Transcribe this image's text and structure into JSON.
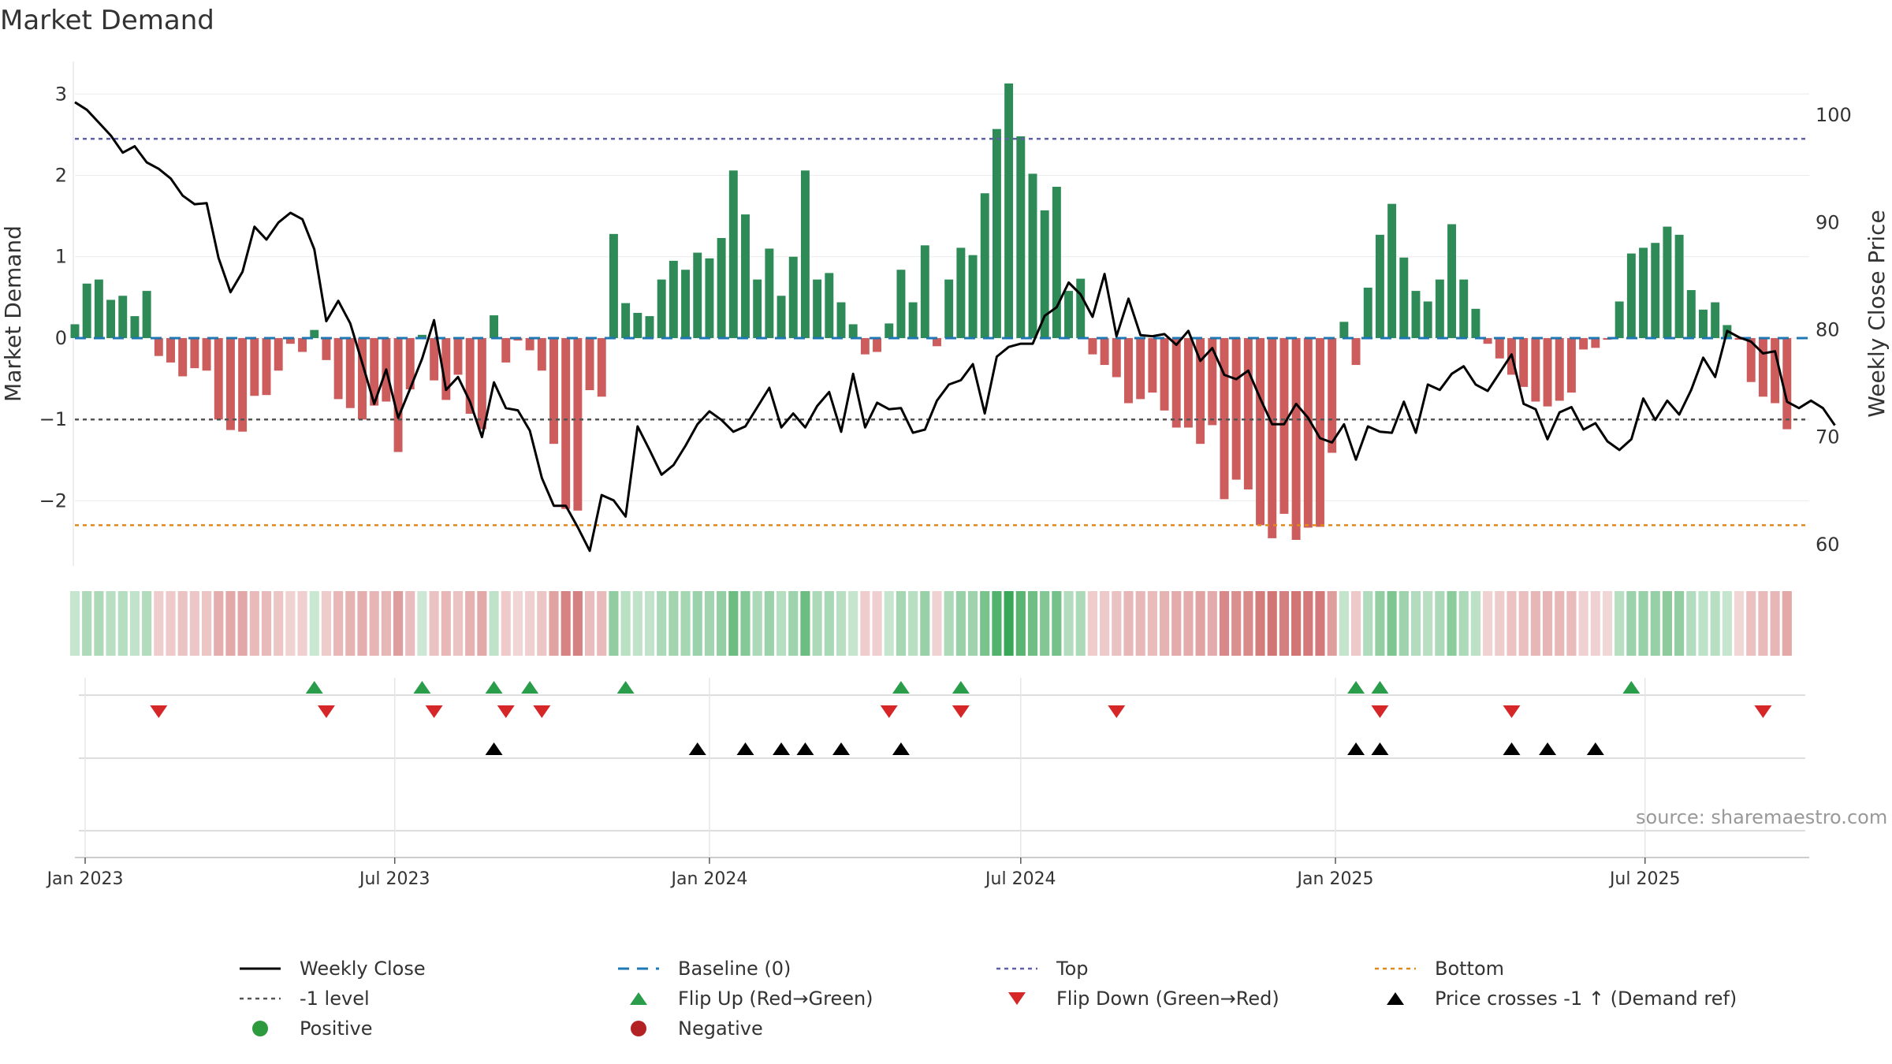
{
  "title": "Market Demand",
  "source": "source: sharemaestro.com",
  "colors": {
    "positive": "#2e8b57",
    "negative": "#cd5c5c",
    "price": "#000000",
    "top": "#5f5fa8",
    "bottom": "#e08a1e",
    "minus_one": "#555555",
    "baseline": "#1f77b4",
    "flip_up": "#2a9d4a",
    "flip_down": "#d62728"
  },
  "chart_data": {
    "type": "bar+line",
    "title": "Market Demand",
    "ylabel_left": "Market Demand",
    "ylabel_right": "Weekly Close Price",
    "ylim_left": [
      -2.8,
      3.4
    ],
    "ylim_right": [
      58,
      105
    ],
    "yticks_left": [
      3,
      2,
      1,
      0,
      -1,
      -2
    ],
    "ytick_labels_left": [
      "3",
      "2",
      "1",
      "0",
      "−1",
      "−2"
    ],
    "yticks_right": [
      100,
      90,
      80,
      70,
      60
    ],
    "ytick_labels_right": [
      "100",
      "90",
      "80",
      "70",
      "60"
    ],
    "x_start": "2022-12-26",
    "x_step_days": 7,
    "x_range_days": [
      0,
      1014
    ],
    "xtick_labels": [
      "Jan 2023",
      "Jul 2023",
      "Jan 2024",
      "Jul 2024",
      "Jan 2025",
      "Jul 2025"
    ],
    "xtick_days": [
      6,
      187,
      371,
      553,
      737,
      918
    ],
    "top_level": 2.45,
    "bottom_level": -2.3,
    "minus_one_level": -1.0,
    "demand": [
      0.17,
      0.67,
      0.72,
      0.47,
      0.52,
      0.27,
      0.58,
      -0.22,
      -0.3,
      -0.47,
      -0.37,
      -0.4,
      -1.0,
      -1.13,
      -1.15,
      -0.71,
      -0.7,
      -0.4,
      -0.07,
      -0.17,
      0.1,
      -0.27,
      -0.75,
      -0.86,
      -1.0,
      -0.83,
      -0.78,
      -1.4,
      -0.63,
      0.04,
      -0.52,
      -0.76,
      -0.45,
      -0.93,
      -1.12,
      0.28,
      -0.3,
      -0.03,
      -0.15,
      -0.4,
      -1.3,
      -2.1,
      -2.12,
      -0.64,
      -0.72,
      1.28,
      0.43,
      0.31,
      0.27,
      0.72,
      0.95,
      0.84,
      1.05,
      0.98,
      1.23,
      2.06,
      1.52,
      0.72,
      1.1,
      0.52,
      1.0,
      2.06,
      0.72,
      0.8,
      0.44,
      0.17,
      -0.2,
      -0.17,
      0.18,
      0.84,
      0.44,
      1.14,
      -0.1,
      0.72,
      1.11,
      1.02,
      1.78,
      2.57,
      3.13,
      2.48,
      2.02,
      1.57,
      1.86,
      0.58,
      0.73,
      -0.2,
      -0.33,
      -0.48,
      -0.8,
      -0.75,
      -0.67,
      -0.89,
      -1.1,
      -1.1,
      -1.3,
      -1.07,
      -1.98,
      -1.74,
      -1.86,
      -2.3,
      -2.46,
      -2.16,
      -2.48,
      -2.33,
      -2.32,
      -1.41,
      0.2,
      -0.33,
      0.62,
      1.27,
      1.65,
      0.99,
      0.58,
      0.45,
      0.72,
      1.4,
      0.72,
      0.36,
      -0.07,
      -0.25,
      -0.45,
      -0.6,
      -0.78,
      -0.84,
      -0.77,
      -0.67,
      -0.14,
      -0.12,
      -0.02,
      0.45,
      1.04,
      1.11,
      1.17,
      1.37,
      1.27,
      0.59,
      0.35,
      0.44,
      0.16,
      -0.02,
      -0.54,
      -0.72,
      -0.8,
      -1.12
    ],
    "price": [
      101.2,
      100.5,
      99.3,
      98.1,
      96.5,
      97.1,
      95.6,
      95.0,
      94.1,
      92.5,
      91.7,
      91.8,
      86.7,
      83.5,
      85.4,
      89.6,
      88.4,
      90.0,
      90.9,
      90.3,
      87.5,
      80.8,
      82.7,
      80.6,
      76.9,
      73.1,
      76.3,
      71.8,
      74.5,
      77.3,
      80.9,
      74.4,
      75.6,
      73.3,
      70.0,
      75.1,
      72.7,
      72.5,
      70.6,
      66.2,
      63.6,
      63.6,
      61.6,
      59.4,
      64.6,
      64.1,
      62.6,
      71.0,
      68.8,
      66.5,
      67.4,
      69.2,
      71.2,
      72.4,
      71.6,
      70.5,
      71.0,
      72.8,
      74.6,
      70.9,
      72.2,
      70.9,
      72.9,
      74.2,
      70.5,
      75.9,
      70.9,
      73.2,
      72.6,
      72.7,
      70.4,
      70.7,
      73.4,
      74.9,
      75.3,
      76.8,
      72.2,
      77.5,
      78.4,
      78.7,
      78.7,
      81.3,
      82.1,
      84.4,
      83.3,
      81.2,
      85.2,
      79.4,
      82.9,
      79.5,
      79.4,
      79.6,
      78.6,
      79.9,
      77.1,
      78.3,
      75.8,
      75.4,
      76.2,
      73.6,
      71.2,
      71.2,
      73.1,
      71.8,
      69.9,
      69.5,
      71.2,
      67.9,
      71.0,
      70.5,
      70.4,
      73.3,
      70.4,
      74.9,
      74.4,
      75.9,
      76.6,
      74.9,
      74.3,
      76.0,
      77.7,
      73.1,
      72.6,
      69.8,
      72.3,
      72.8,
      70.7,
      71.3,
      69.6,
      68.8,
      69.8,
      73.6,
      71.6,
      73.4,
      72.1,
      74.4,
      77.4,
      75.6,
      79.9,
      79.3,
      78.9,
      77.8,
      78.0,
      73.3,
      72.7,
      73.4,
      72.7,
      71.1
    ]
  },
  "heat_strip": {
    "legend_positive": "Positive",
    "legend_negative": "Negative"
  },
  "markers": {
    "flip_up_weeks": [
      20,
      29,
      35,
      38,
      46,
      69,
      74,
      107,
      109,
      130
    ],
    "flip_down_weeks": [
      7,
      21,
      30,
      36,
      39,
      68,
      74,
      87,
      109,
      120,
      141
    ],
    "price_cross_weeks": [
      35,
      52,
      56,
      59,
      61,
      64,
      69,
      107,
      109,
      120,
      123,
      127
    ]
  },
  "legend": [
    {
      "key": "close",
      "label": "Weekly Close"
    },
    {
      "key": "baseline",
      "label": "Baseline (0)"
    },
    {
      "key": "top",
      "label": "Top"
    },
    {
      "key": "bottom",
      "label": "Bottom"
    },
    {
      "key": "minus1",
      "label": "-1 level"
    },
    {
      "key": "flipup",
      "label": "Flip Up (Red→Green)"
    },
    {
      "key": "flipdown",
      "label": "Flip Down (Green→Red)"
    },
    {
      "key": "cross",
      "label": "Price crosses -1 ↑ (Demand ref)"
    },
    {
      "key": "positive",
      "label": "Positive"
    },
    {
      "key": "negative",
      "label": "Negative"
    }
  ]
}
